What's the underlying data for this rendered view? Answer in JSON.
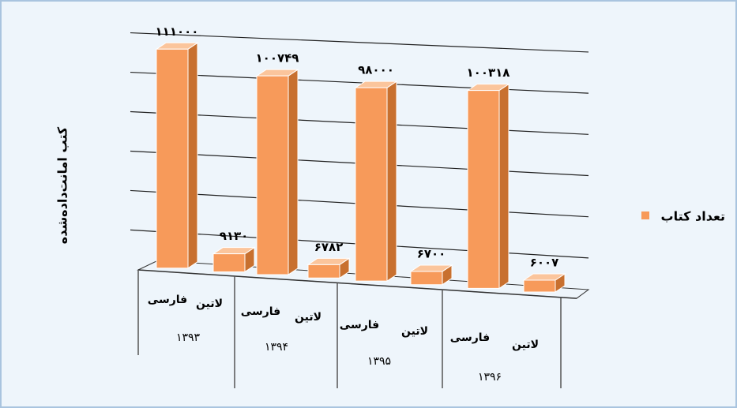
{
  "chart_data": {
    "type": "bar3d",
    "y_label": "کتب امانت‌داده‌شده",
    "categories": [
      "فارسی",
      "لاتین",
      "فارسی",
      "لاتین",
      "فارسی",
      "لاتین",
      "فارسی",
      "لاتین"
    ],
    "group_labels": [
      "۱۳۹۳",
      "۱۳۹۴",
      "۱۳۹۵",
      "۱۳۹۶"
    ],
    "series": [
      {
        "name": "تعداد کتاب",
        "color": "#f79a5a",
        "values": [
          111000,
          9130,
          100749,
          6782,
          98000,
          6700,
          100318,
          6007
        ],
        "value_labels": [
          "۱۱۱۰۰۰",
          "۹۱۳۰",
          "۱۰۰۷۴۹",
          "۶۷۸۲",
          "۹۸۰۰۰",
          "۶۷۰۰",
          "۱۰۰۳۱۸",
          "۶۰۰۷"
        ]
      }
    ],
    "ylim": [
      0,
      120000
    ],
    "yticks": [
      0,
      20000,
      40000,
      60000,
      80000,
      100000,
      120000
    ],
    "grid": true,
    "legend": "right"
  }
}
